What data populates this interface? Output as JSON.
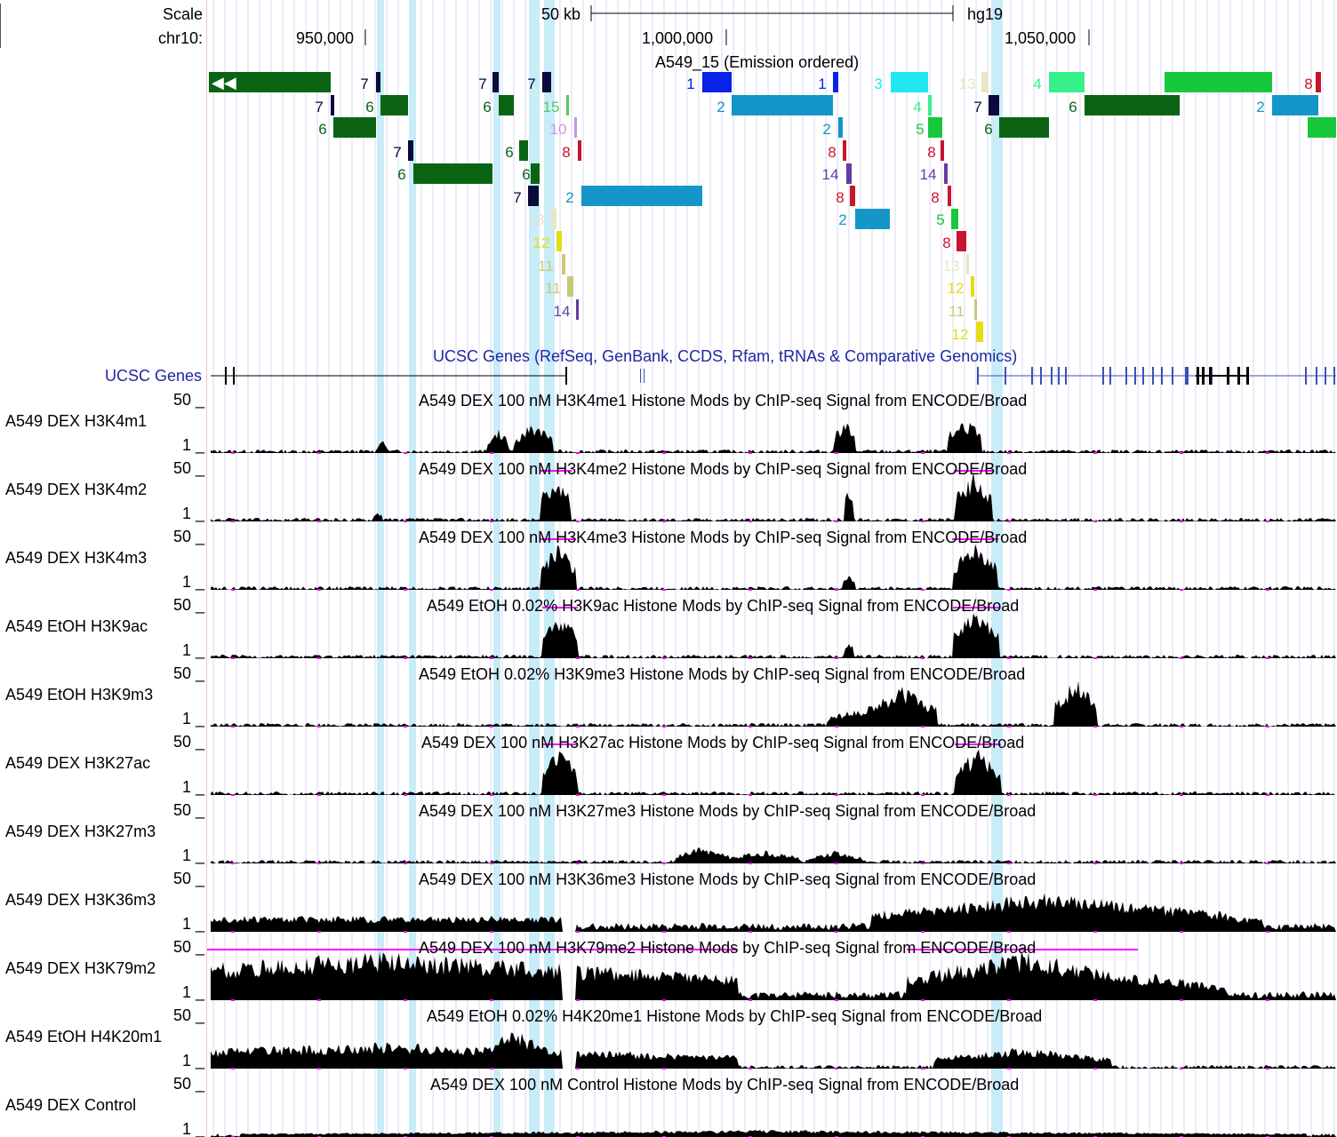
{
  "header": {
    "scale_label": "Scale",
    "chrom_label": "chr10:",
    "scale_bar_label": "50 kb",
    "assembly": "hg19",
    "positions": [
      "950,000",
      "1,000,000",
      "1,050,000"
    ]
  },
  "hmm_track": {
    "title": "A549_15 (Emission ordered)"
  },
  "genes_track": {
    "title": "UCSC Genes (RefSeq, GenBank, CCDS, Rfam, tRNAs & Comparative Genomics)",
    "label": "UCSC Genes"
  },
  "signal_tracks": [
    {
      "label": "A549 DEX H3K4m1",
      "title": "A549 DEX 100 nM H3K4me1 Histone Mods by ChIP-seq Signal from ENCODE/Broad",
      "max": "50 _",
      "min": "1 _"
    },
    {
      "label": "A549 DEX H3K4m2",
      "title": "A549 DEX 100 nM H3K4me2 Histone Mods by ChIP-seq Signal from ENCODE/Broad",
      "max": "50 _",
      "min": "1 _"
    },
    {
      "label": "A549 DEX H3K4m3",
      "title": "A549 DEX 100 nM H3K4me3 Histone Mods by ChIP-seq Signal from ENCODE/Broad",
      "max": "50 _",
      "min": "1 _"
    },
    {
      "label": "A549 EtOH H3K9ac",
      "title": "A549 EtOH 0.02% H3K9ac Histone Mods by ChIP-seq Signal from ENCODE/Broad",
      "max": "50 _",
      "min": "1 _"
    },
    {
      "label": "A549 EtOH H3K9m3",
      "title": "A549 EtOH 0.02% H3K9me3 Histone Mods by ChIP-seq Signal from ENCODE/Broad",
      "max": "50 _",
      "min": "1 _"
    },
    {
      "label": "A549 DEX H3K27ac",
      "title": "A549 DEX 100 nM H3K27ac Histone Mods by ChIP-seq Signal from ENCODE/Broad",
      "max": "50 _",
      "min": "1 _"
    },
    {
      "label": "A549 DEX H3K27m3",
      "title": "A549 DEX 100 nM H3K27me3 Histone Mods by ChIP-seq Signal from ENCODE/Broad",
      "max": "50 _",
      "min": "1 _"
    },
    {
      "label": "A549 DEX H3K36m3",
      "title": "A549 DEX 100 nM H3K36me3 Histone Mods by ChIP-seq Signal from ENCODE/Broad",
      "max": "50 _",
      "min": "1 _"
    },
    {
      "label": "A549 DEX H3K79m2",
      "title": "A549 DEX 100 nM H3K79me2 Histone Mods by ChIP-seq Signal from ENCODE/Broad",
      "max": "50 _",
      "min": "1 _"
    },
    {
      "label": "A549 EtOH H4K20m1",
      "title": "A549 EtOH 0.02% H4K20me1 Histone Mods by ChIP-seq Signal from ENCODE/Broad",
      "max": "50 _",
      "min": "1 _"
    },
    {
      "label": "A549 DEX Control",
      "title": "A549 DEX 100 nM Control Histone Mods by ChIP-seq Signal from ENCODE/Broad",
      "max": "50 _",
      "min": "1 _"
    }
  ],
  "state_colors": {
    "1": "#0a22e6",
    "2": "#1496c8",
    "3": "#22e6f0",
    "4": "#36f08c",
    "5": "#16c83c",
    "6": "#0a6414",
    "7": "#0a0a3c",
    "8": "#c8142d",
    "10": "#c896e6",
    "11": "#c8c878",
    "12": "#e6dc14",
    "13": "#e6e6c8",
    "14": "#643ca0",
    "15": "#5ac85a"
  },
  "hmm_labels": {
    "1": "1",
    "2": "2",
    "3": "3",
    "4": "4",
    "5": "5",
    "6": "6",
    "7": "7",
    "8": "8",
    "10": "10",
    "11": "11",
    "12": "12",
    "13": "13",
    "14": "14",
    "15": "15"
  },
  "colors": {
    "highlight": "#c8ecf8",
    "gridline": "#d8d8f4",
    "signal": "#000000",
    "clipped": "#ff00ff",
    "gene": "#000000",
    "gene_blue": "#3c50b4",
    "genes_title": "#1e28a0"
  }
}
